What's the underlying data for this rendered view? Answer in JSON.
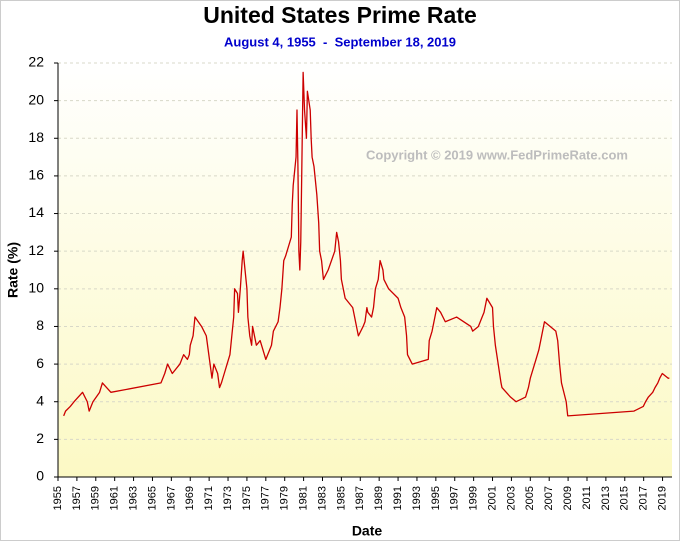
{
  "chart_data": {
    "type": "line",
    "title": "United States Prime Rate",
    "subtitle": "August 4, 1955  -  September 18, 2019",
    "annotation": "Copyright © 2019 www.FedPrimeRate.com",
    "x_label": "Date",
    "y_label": "Rate (%)",
    "xlim": [
      1955,
      2020
    ],
    "ylim": [
      0,
      22
    ],
    "xticks": [
      1955,
      1957,
      1959,
      1961,
      1963,
      1965,
      1967,
      1969,
      1971,
      1973,
      1975,
      1977,
      1979,
      1981,
      1983,
      1985,
      1987,
      1989,
      1991,
      1993,
      1995,
      1997,
      1999,
      2001,
      2003,
      2005,
      2007,
      2009,
      2011,
      2013,
      2015,
      2017,
      2019
    ],
    "yticks": [
      0,
      2,
      4,
      6,
      8,
      10,
      12,
      14,
      16,
      18,
      20,
      22
    ],
    "grid": true,
    "series": [
      {
        "name": "Prime Rate",
        "color": "#cc0000",
        "x": [
          1955.6,
          1955.8,
          1956.3,
          1956.7,
          1957.6,
          1958.1,
          1958.3,
          1958.7,
          1959.4,
          1959.7,
          1960.6,
          1965.9,
          1966.3,
          1966.6,
          1967.1,
          1967.9,
          1968.3,
          1968.7,
          1968.9,
          1969.0,
          1969.3,
          1969.5,
          1970.2,
          1970.7,
          1970.9,
          1971.1,
          1971.3,
          1971.5,
          1971.9,
          1972.1,
          1972.3,
          1972.6,
          1972.9,
          1973.2,
          1973.4,
          1973.6,
          1973.7,
          1974.0,
          1974.1,
          1974.3,
          1974.5,
          1974.6,
          1974.8,
          1975.0,
          1975.1,
          1975.3,
          1975.5,
          1975.6,
          1975.8,
          1976.0,
          1976.4,
          1976.7,
          1977.0,
          1977.4,
          1977.6,
          1977.8,
          1978.3,
          1978.5,
          1978.7,
          1978.9,
          1979.1,
          1979.7,
          1979.8,
          1979.9,
          1980.2,
          1980.3,
          1980.4,
          1980.5,
          1980.6,
          1980.7,
          1980.8,
          1980.95,
          1981.1,
          1981.3,
          1981.4,
          1981.7,
          1981.8,
          1981.9,
          1982.1,
          1982.4,
          1982.6,
          1982.7,
          1982.9,
          1983.1,
          1983.6,
          1984.3,
          1984.5,
          1984.7,
          1984.9,
          1985.0,
          1985.4,
          1986.2,
          1986.4,
          1986.6,
          1986.8,
          1987.3,
          1987.5,
          1987.7,
          1987.8,
          1988.2,
          1988.4,
          1988.6,
          1988.9,
          1989.1,
          1989.4,
          1989.5,
          1990.0,
          1991.0,
          1991.3,
          1991.7,
          1991.9,
          1992.0,
          1992.5,
          1994.2,
          1994.3,
          1994.6,
          1994.9,
          1995.1,
          1995.5,
          1996.0,
          1997.2,
          1998.7,
          1998.9,
          1999.5,
          1999.7,
          1999.9,
          2000.1,
          2000.4,
          2001.0,
          2001.1,
          2001.3,
          2001.6,
          2001.9,
          2002.0,
          2002.9,
          2003.5,
          2004.5,
          2004.8,
          2005.0,
          2005.3,
          2005.6,
          2005.9,
          2006.1,
          2006.3,
          2006.5,
          2007.7,
          2007.9,
          2008.1,
          2008.3,
          2008.8,
          2008.96,
          2015.96,
          2016.96,
          2017.2,
          2017.5,
          2017.96,
          2018.2,
          2018.5,
          2018.7,
          2018.97,
          2019.6,
          2019.72
        ],
        "values": [
          3.25,
          3.5,
          3.75,
          4,
          4.5,
          4,
          3.5,
          4,
          4.5,
          5,
          4.5,
          5,
          5.5,
          6,
          5.5,
          6,
          6.5,
          6.25,
          6.5,
          7,
          7.5,
          8.5,
          8,
          7.5,
          6.75,
          6,
          5.25,
          6,
          5.5,
          4.75,
          5,
          5.5,
          6,
          6.5,
          7.5,
          8.5,
          10,
          9.75,
          8.75,
          10,
          11.5,
          12,
          11,
          10,
          8.5,
          7.5,
          7,
          8,
          7.5,
          7,
          7.25,
          6.75,
          6.25,
          6.75,
          7,
          7.75,
          8.25,
          9,
          10,
          11.5,
          11.75,
          12.75,
          14.5,
          15.5,
          17,
          19.5,
          16.5,
          12,
          11,
          12.5,
          16,
          21.5,
          19.5,
          18,
          20.5,
          19.5,
          18,
          17,
          16.5,
          15,
          13.5,
          12,
          11.5,
          10.5,
          11,
          12,
          13,
          12.5,
          11.5,
          10.5,
          9.5,
          9,
          8.5,
          8,
          7.5,
          8,
          8.25,
          9,
          8.75,
          8.5,
          9,
          10,
          10.5,
          11.5,
          11,
          10.5,
          10,
          9.5,
          9,
          8.5,
          7.5,
          6.5,
          6,
          6.25,
          7.25,
          7.75,
          8.5,
          9,
          8.75,
          8.25,
          8.5,
          8,
          7.75,
          8,
          8.25,
          8.5,
          8.75,
          9.5,
          9,
          8,
          7,
          6,
          5,
          4.75,
          4.25,
          4,
          4.25,
          4.75,
          5.25,
          5.75,
          6.25,
          6.75,
          7.25,
          7.75,
          8.25,
          7.75,
          7.25,
          6,
          5,
          4,
          3.25,
          3.5,
          3.75,
          4,
          4.25,
          4.5,
          4.75,
          5,
          5.25,
          5.5,
          5.25,
          5.25
        ]
      }
    ]
  }
}
